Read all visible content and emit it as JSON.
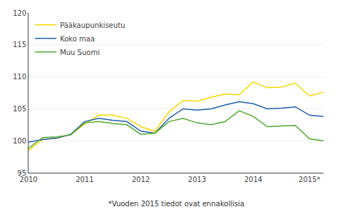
{
  "chart_data": {
    "type": "line",
    "categories": [
      "2010",
      null,
      null,
      null,
      "2011",
      null,
      null,
      null,
      "2012",
      null,
      null,
      null,
      "2013",
      null,
      null,
      null,
      "2014",
      null,
      null,
      null,
      "2015*",
      null
    ],
    "series": [
      {
        "name": "Pääkaupunkiseutu",
        "color": "#f5d800",
        "values": [
          98.5,
          100.2,
          100.4,
          101.0,
          102.6,
          104.0,
          104.0,
          103.5,
          102.2,
          101.5,
          104.5,
          106.3,
          106.2,
          106.8,
          107.3,
          107.2,
          109.2,
          108.3,
          108.4,
          109.0,
          107.0,
          107.6
        ]
      },
      {
        "name": "Koko maa",
        "color": "#2060b0",
        "values": [
          99.8,
          100.2,
          100.4,
          101.0,
          103.0,
          103.5,
          103.2,
          103.0,
          101.5,
          101.2,
          103.5,
          105.0,
          104.8,
          105.0,
          105.6,
          106.1,
          105.8,
          105.0,
          105.1,
          105.3,
          104.0,
          103.8
        ]
      },
      {
        "name": "Muu Suomi",
        "color": "#50aa30",
        "values": [
          98.8,
          100.5,
          100.6,
          100.9,
          102.8,
          103.0,
          102.7,
          102.5,
          101.0,
          101.2,
          103.0,
          103.5,
          102.8,
          102.5,
          103.0,
          104.7,
          103.8,
          102.2,
          102.3,
          102.4,
          100.3,
          100.0
        ]
      }
    ],
    "ylim": [
      95,
      120
    ],
    "yticks": [
      95,
      100,
      105,
      110,
      115,
      120
    ],
    "y2lim": [
      95,
      120
    ],
    "y2ticks": [
      95,
      100,
      105,
      110,
      115,
      120
    ],
    "grid": true,
    "legend": "upper left",
    "annotations": [
      "*Vuoden 2015 tiedot ovat ennakollisia"
    ]
  }
}
